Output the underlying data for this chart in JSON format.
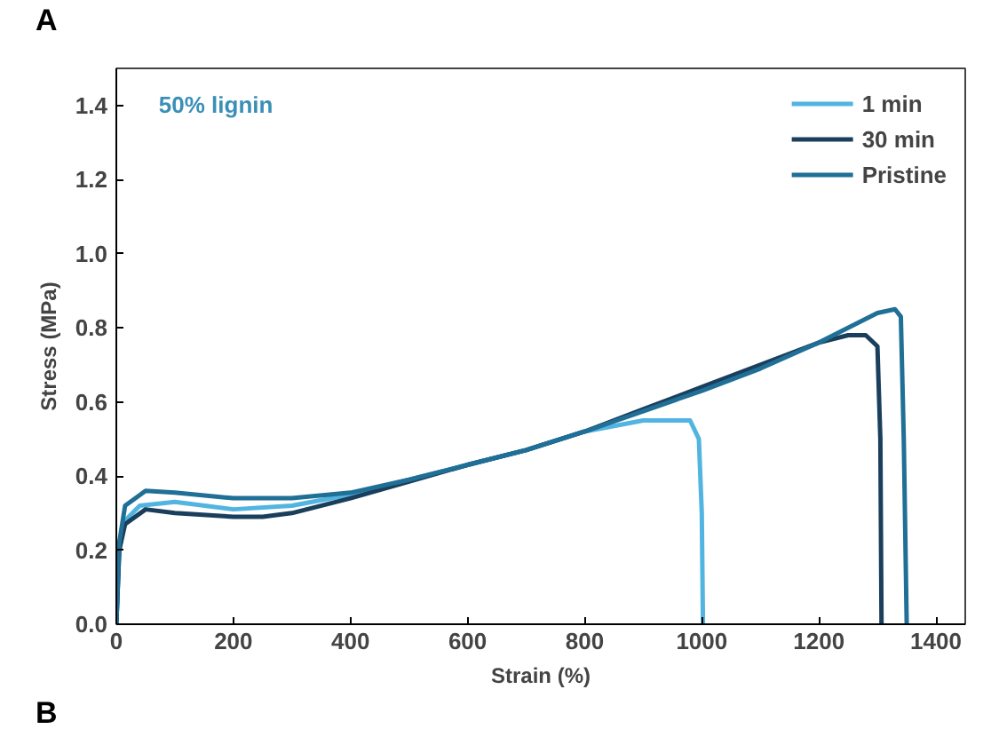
{
  "chart_data": {
    "type": "line",
    "xlabel": "Strain (%)",
    "ylabel": "Stress (MPa)",
    "annotations": [
      "A",
      "50% lignin",
      "B"
    ],
    "xlim": [
      0,
      1450
    ],
    "ylim": [
      0,
      1.5
    ],
    "xticks": [
      0,
      200,
      400,
      600,
      800,
      1000,
      1200,
      1400
    ],
    "yticks": [
      {
        "value": 0,
        "label": "0.0"
      },
      {
        "value": 0.2,
        "label": "0.2"
      },
      {
        "value": 0.4,
        "label": "0.4"
      },
      {
        "value": 0.6,
        "label": "0.6"
      },
      {
        "value": 0.8,
        "label": "0.8"
      },
      {
        "value": 1.0,
        "label": "1.0"
      },
      {
        "value": 1.2,
        "label": "1.2"
      },
      {
        "value": 1.4,
        "label": "1.4"
      }
    ],
    "grid": false,
    "legend": "top right",
    "marker": "none",
    "line_style": "solid",
    "series": [
      {
        "name": "1 min",
        "color": "#52b4e0",
        "x": [
          0,
          5,
          15,
          40,
          100,
          200,
          300,
          400,
          500,
          600,
          700,
          800,
          900,
          980,
          995,
          1000,
          1002
        ],
        "values": [
          0,
          0.2,
          0.28,
          0.32,
          0.33,
          0.31,
          0.32,
          0.35,
          0.39,
          0.43,
          0.47,
          0.52,
          0.55,
          0.55,
          0.5,
          0.3,
          0
        ]
      },
      {
        "name": "30 min",
        "color": "#1a3f5c",
        "x": [
          0,
          5,
          15,
          50,
          100,
          200,
          250,
          300,
          400,
          500,
          600,
          700,
          800,
          900,
          1000,
          1100,
          1200,
          1250,
          1280,
          1300,
          1305,
          1307
        ],
        "values": [
          0,
          0.2,
          0.27,
          0.31,
          0.3,
          0.29,
          0.29,
          0.3,
          0.34,
          0.385,
          0.43,
          0.47,
          0.52,
          0.58,
          0.64,
          0.7,
          0.76,
          0.78,
          0.78,
          0.75,
          0.5,
          0
        ]
      },
      {
        "name": "Pristine",
        "color": "#1f6f96",
        "x": [
          0,
          5,
          15,
          50,
          100,
          200,
          300,
          400,
          500,
          600,
          700,
          800,
          900,
          1000,
          1100,
          1200,
          1300,
          1330,
          1340,
          1345,
          1350
        ],
        "values": [
          0,
          0.22,
          0.32,
          0.36,
          0.355,
          0.34,
          0.34,
          0.355,
          0.39,
          0.43,
          0.47,
          0.52,
          0.575,
          0.63,
          0.69,
          0.76,
          0.84,
          0.85,
          0.83,
          0.5,
          0
        ]
      }
    ]
  }
}
